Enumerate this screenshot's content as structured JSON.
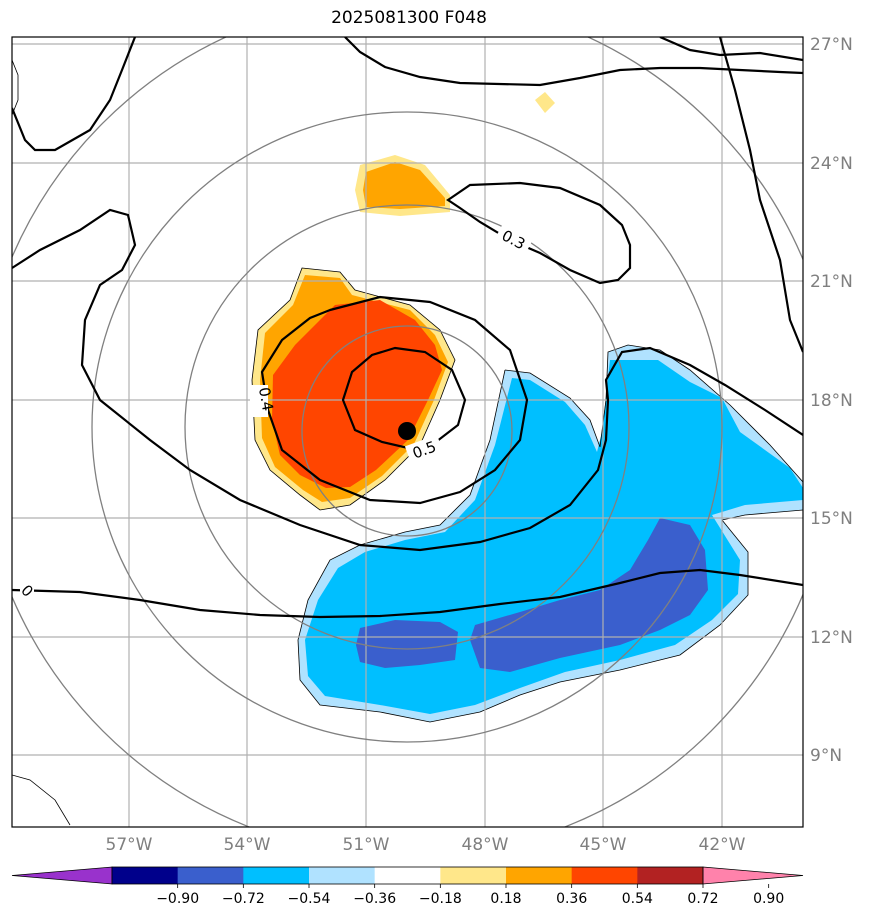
{
  "title": "2025081300 F048",
  "lat_labels": [
    "27°N",
    "24°N",
    "21°N",
    "18°N",
    "15°N",
    "12°N",
    "9°N"
  ],
  "lon_labels": [
    "57°W",
    "54°W",
    "51°W",
    "48°W",
    "45°W",
    "42°W"
  ],
  "contour_labels": [
    "0.3",
    "0.4",
    "0.5",
    "0"
  ],
  "colorbar": {
    "ticks": [
      "−0.90",
      "−0.72",
      "−0.54",
      "−0.36",
      "−0.18",
      "0.18",
      "0.36",
      "0.54",
      "0.72",
      "0.90"
    ],
    "colors": [
      "#9932cc",
      "#00008b",
      "#3a5fcd",
      "#00bfff",
      "#b0e2ff",
      "#ffffff",
      "#ffe78a",
      "#ffa500",
      "#ff4500",
      "#b22222",
      "#ff82ab"
    ]
  },
  "colors": {
    "grid": "#b0b0b0",
    "range_ring": "#808080",
    "contour": "#000000",
    "tick_text": "#7f7f7f"
  },
  "markers": [
    "storm-center-dot"
  ]
}
